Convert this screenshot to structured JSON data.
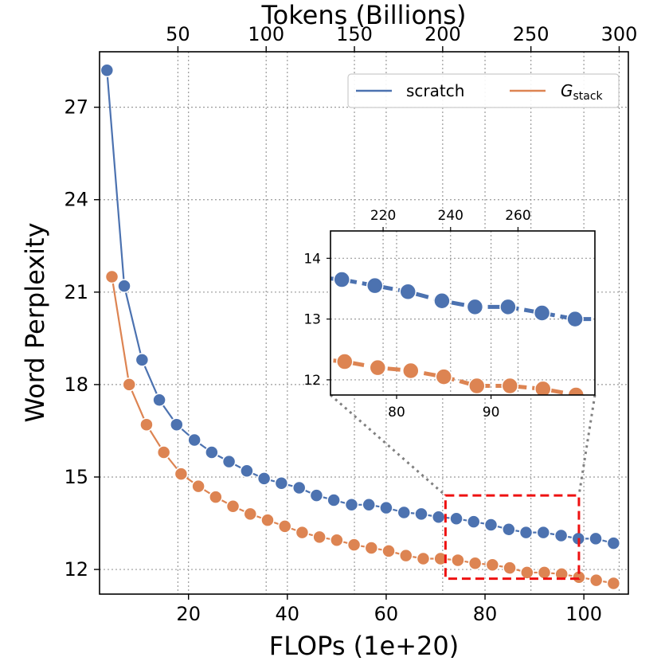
{
  "chart_data": {
    "type": "line",
    "xlabel": "FLOPs (1e+20)",
    "x2label": "Tokens (Billions)",
    "ylabel": "Word Perplexity",
    "xlim": [
      2,
      109
    ],
    "ylim": [
      11.2,
      28.8
    ],
    "xticks": [
      20,
      40,
      60,
      80,
      100
    ],
    "yticks": [
      12,
      15,
      18,
      21,
      24,
      27
    ],
    "x2ticks": [
      50,
      100,
      150,
      200,
      250,
      300
    ],
    "tokens_per_flop": 2.8,
    "grid": true,
    "legend_position": "top-right",
    "legend": {
      "scratch_label": "scratch",
      "gstack_main": "G",
      "gstack_sub": "stack"
    },
    "series": [
      {
        "name": "scratch",
        "color": "#4c72b0",
        "x": [
          3.5,
          7.0,
          10.6,
          14.1,
          17.6,
          21.2,
          24.7,
          28.2,
          31.8,
          35.3,
          38.8,
          42.4,
          45.9,
          49.4,
          53.0,
          56.5,
          60.0,
          63.6,
          67.1,
          70.6,
          74.2,
          77.7,
          81.2,
          84.8,
          88.3,
          91.8,
          95.4,
          98.9,
          102.4,
          106.0
        ],
        "y": [
          28.2,
          21.2,
          18.8,
          17.5,
          16.7,
          16.2,
          15.8,
          15.5,
          15.2,
          14.95,
          14.8,
          14.65,
          14.4,
          14.25,
          14.1,
          14.1,
          14.0,
          13.85,
          13.8,
          13.7,
          13.65,
          13.55,
          13.45,
          13.3,
          13.2,
          13.2,
          13.1,
          13.0,
          13.0,
          12.85
        ]
      },
      {
        "name": "G_stack",
        "color": "#dd8452",
        "x": [
          4.5,
          8.0,
          11.5,
          15.0,
          18.5,
          22.0,
          25.5,
          29.0,
          32.5,
          36.0,
          39.5,
          43.0,
          46.5,
          50.0,
          53.5,
          57.0,
          60.5,
          64.0,
          67.5,
          71.0,
          74.5,
          78.0,
          81.5,
          85.0,
          88.5,
          92.0,
          95.5,
          99.0,
          102.5,
          106.0
        ],
        "y": [
          21.5,
          18.0,
          16.7,
          15.8,
          15.1,
          14.7,
          14.35,
          14.05,
          13.8,
          13.6,
          13.4,
          13.2,
          13.05,
          12.95,
          12.8,
          12.7,
          12.6,
          12.45,
          12.35,
          12.35,
          12.3,
          12.2,
          12.15,
          12.05,
          11.9,
          11.9,
          11.85,
          11.75,
          11.65,
          11.55
        ]
      }
    ],
    "inset": {
      "xlim": [
        73,
        101
      ],
      "ylim": [
        11.75,
        14.45
      ],
      "xticks": [
        80,
        90
      ],
      "yticks": [
        12,
        13,
        14
      ],
      "x2ticks": [
        220,
        240,
        260
      ],
      "zoom_box": {
        "x": [
          72,
          99
        ],
        "y": [
          11.7,
          14.4
        ]
      }
    }
  }
}
